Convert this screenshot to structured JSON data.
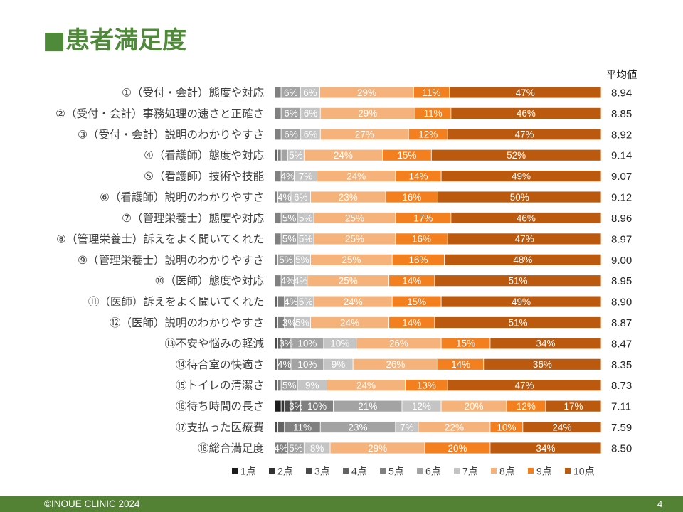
{
  "title": "■患者満足度",
  "theme": {
    "title_green": "#4f8a3b",
    "footer_green": "#548235"
  },
  "chart_data": {
    "type": "bar",
    "horizontal": true,
    "stacked": true,
    "xlim": [
      0,
      100
    ],
    "legend_position": "bottom",
    "average_header": "平均値",
    "series": [
      {
        "name": "1点",
        "color": "#1c1c1c"
      },
      {
        "name": "2点",
        "color": "#333333"
      },
      {
        "name": "3点",
        "color": "#4a4a4a"
      },
      {
        "name": "4点",
        "color": "#636363"
      },
      {
        "name": "5点",
        "color": "#808080"
      },
      {
        "name": "6点",
        "color": "#a3a3a3"
      },
      {
        "name": "7点",
        "color": "#c4c4c4"
      },
      {
        "name": "8点",
        "color": "#f5b37b"
      },
      {
        "name": "9点",
        "color": "#f47f1f"
      },
      {
        "name": "10点",
        "color": "#bb5a0f"
      }
    ],
    "rows": [
      {
        "category": "①（受付・会計）態度や対応",
        "average": "8.94",
        "segments": [
          {
            "series": "5点",
            "pct": 2
          },
          {
            "series": "6点",
            "pct": 6,
            "label": "6%"
          },
          {
            "series": "7点",
            "pct": 6,
            "label": "6%"
          },
          {
            "series": "8点",
            "pct": 29,
            "label": "29%"
          },
          {
            "series": "9点",
            "pct": 11,
            "label": "11%"
          },
          {
            "series": "10点",
            "pct": 47,
            "label": "47%"
          }
        ]
      },
      {
        "category": "②（受付・会計）事務処理の速さと正確さ",
        "average": "8.85",
        "segments": [
          {
            "series": "5点",
            "pct": 2
          },
          {
            "series": "6点",
            "pct": 6,
            "label": "6%"
          },
          {
            "series": "7点",
            "pct": 6,
            "label": "6%"
          },
          {
            "series": "8点",
            "pct": 29,
            "label": "29%"
          },
          {
            "series": "9点",
            "pct": 11,
            "label": "11%"
          },
          {
            "series": "10点",
            "pct": 46,
            "label": "46%"
          }
        ]
      },
      {
        "category": "③（受付・会計）説明のわかりやすさ",
        "average": "8.92",
        "segments": [
          {
            "series": "5点",
            "pct": 2
          },
          {
            "series": "6点",
            "pct": 6,
            "label": "6%"
          },
          {
            "series": "7点",
            "pct": 6,
            "label": "6%"
          },
          {
            "series": "8点",
            "pct": 27,
            "label": "27%"
          },
          {
            "series": "9点",
            "pct": 12,
            "label": "12%"
          },
          {
            "series": "10点",
            "pct": 47,
            "label": "47%"
          }
        ]
      },
      {
        "category": "④（看護師）態度や対応",
        "average": "9.14",
        "segments": [
          {
            "series": "4点",
            "pct": 1
          },
          {
            "series": "5点",
            "pct": 1
          },
          {
            "series": "6点",
            "pct": 2
          },
          {
            "series": "7点",
            "pct": 5,
            "label": "5%"
          },
          {
            "series": "8点",
            "pct": 24,
            "label": "24%"
          },
          {
            "series": "9点",
            "pct": 15,
            "label": "15%"
          },
          {
            "series": "10点",
            "pct": 52,
            "label": "52%"
          }
        ]
      },
      {
        "category": "⑤（看護師）技術や技能",
        "average": "9.07",
        "segments": [
          {
            "series": "5点",
            "pct": 2
          },
          {
            "series": "6点",
            "pct": 4,
            "label": "4%"
          },
          {
            "series": "7点",
            "pct": 7,
            "label": "7%"
          },
          {
            "series": "8点",
            "pct": 24,
            "label": "24%"
          },
          {
            "series": "9点",
            "pct": 14,
            "label": "14%"
          },
          {
            "series": "10点",
            "pct": 49,
            "label": "49%"
          }
        ]
      },
      {
        "category": "⑥（看護師）説明のわかりやすさ",
        "average": "9.12",
        "segments": [
          {
            "series": "5点",
            "pct": 1
          },
          {
            "series": "6点",
            "pct": 4,
            "label": "4%"
          },
          {
            "series": "7点",
            "pct": 6,
            "label": "6%"
          },
          {
            "series": "8点",
            "pct": 23,
            "label": "23%"
          },
          {
            "series": "9点",
            "pct": 16,
            "label": "16%"
          },
          {
            "series": "10点",
            "pct": 50,
            "label": "50%"
          }
        ]
      },
      {
        "category": "⑦（管理栄養士）態度や対応",
        "average": "8.96",
        "segments": [
          {
            "series": "5点",
            "pct": 2
          },
          {
            "series": "6点",
            "pct": 5,
            "label": "5%"
          },
          {
            "series": "7点",
            "pct": 5,
            "label": "5%"
          },
          {
            "series": "8点",
            "pct": 25,
            "label": "25%"
          },
          {
            "series": "9点",
            "pct": 17,
            "label": "17%"
          },
          {
            "series": "10点",
            "pct": 46,
            "label": "46%"
          }
        ]
      },
      {
        "category": "⑧（管理栄養士）訴えをよく聞いてくれた",
        "average": "8.97",
        "segments": [
          {
            "series": "5点",
            "pct": 2
          },
          {
            "series": "6点",
            "pct": 5,
            "label": "5%"
          },
          {
            "series": "7点",
            "pct": 5,
            "label": "5%"
          },
          {
            "series": "8点",
            "pct": 25,
            "label": "25%"
          },
          {
            "series": "9点",
            "pct": 16,
            "label": "16%"
          },
          {
            "series": "10点",
            "pct": 47,
            "label": "47%"
          }
        ]
      },
      {
        "category": "⑨（管理栄養士）説明のわかりやすさ",
        "average": "9.00",
        "segments": [
          {
            "series": "5点",
            "pct": 1
          },
          {
            "series": "6点",
            "pct": 5,
            "label": "5%"
          },
          {
            "series": "7点",
            "pct": 5,
            "label": "5%"
          },
          {
            "series": "8点",
            "pct": 25,
            "label": "25%"
          },
          {
            "series": "9点",
            "pct": 16,
            "label": "16%"
          },
          {
            "series": "10点",
            "pct": 48,
            "label": "48%"
          }
        ]
      },
      {
        "category": "⑩（医師）態度や対応",
        "average": "8.95",
        "segments": [
          {
            "series": "5点",
            "pct": 2
          },
          {
            "series": "6点",
            "pct": 4,
            "label": "4%"
          },
          {
            "series": "7点",
            "pct": 4,
            "label": "4%"
          },
          {
            "series": "8点",
            "pct": 25,
            "label": "25%"
          },
          {
            "series": "9点",
            "pct": 14,
            "label": "14%"
          },
          {
            "series": "10点",
            "pct": 51,
            "label": "51%"
          }
        ]
      },
      {
        "category": "⑪（医師）訴えをよく聞いてくれた",
        "average": "8.90",
        "segments": [
          {
            "series": "4点",
            "pct": 1
          },
          {
            "series": "5点",
            "pct": 2
          },
          {
            "series": "6点",
            "pct": 4,
            "label": "4%"
          },
          {
            "series": "7点",
            "pct": 5,
            "label": "5%"
          },
          {
            "series": "8点",
            "pct": 24,
            "label": "24%"
          },
          {
            "series": "9点",
            "pct": 15,
            "label": "15%"
          },
          {
            "series": "10点",
            "pct": 49,
            "label": "49%"
          }
        ]
      },
      {
        "category": "⑫（医師）説明のわかりやすさ",
        "average": "8.87",
        "segments": [
          {
            "series": "4点",
            "pct": 1
          },
          {
            "series": "5点",
            "pct": 2
          },
          {
            "series": "6点",
            "pct": 3,
            "label": "3%"
          },
          {
            "series": "7点",
            "pct": 5,
            "label": "5%"
          },
          {
            "series": "8点",
            "pct": 24,
            "label": "24%"
          },
          {
            "series": "9点",
            "pct": 14,
            "label": "14%"
          },
          {
            "series": "10点",
            "pct": 51,
            "label": "51%"
          }
        ]
      },
      {
        "category": "⑬不安や悩みの軽減",
        "average": "8.47",
        "segments": [
          {
            "series": "3点",
            "pct": 1
          },
          {
            "series": "4点",
            "pct": 1
          },
          {
            "series": "5点",
            "pct": 3,
            "label": "3%"
          },
          {
            "series": "6点",
            "pct": 10,
            "label": "10%"
          },
          {
            "series": "7点",
            "pct": 10,
            "label": "10%"
          },
          {
            "series": "8点",
            "pct": 26,
            "label": "26%"
          },
          {
            "series": "9点",
            "pct": 15,
            "label": "15%"
          },
          {
            "series": "10点",
            "pct": 34,
            "label": "34%"
          }
        ]
      },
      {
        "category": "⑭待合室の快適さ",
        "average": "8.35",
        "segments": [
          {
            "series": "4点",
            "pct": 1
          },
          {
            "series": "5点",
            "pct": 4,
            "label": "4%"
          },
          {
            "series": "6点",
            "pct": 10,
            "label": "10%"
          },
          {
            "series": "7点",
            "pct": 9,
            "label": "9%"
          },
          {
            "series": "8点",
            "pct": 26,
            "label": "26%"
          },
          {
            "series": "9点",
            "pct": 14,
            "label": "14%"
          },
          {
            "series": "10点",
            "pct": 36,
            "label": "36%"
          }
        ]
      },
      {
        "category": "⑮トイレの清潔さ",
        "average": "8.73",
        "segments": [
          {
            "series": "4点",
            "pct": 1
          },
          {
            "series": "5点",
            "pct": 1
          },
          {
            "series": "6点",
            "pct": 5,
            "label": "5%"
          },
          {
            "series": "7点",
            "pct": 9,
            "label": "9%"
          },
          {
            "series": "8点",
            "pct": 24,
            "label": "24%"
          },
          {
            "series": "9点",
            "pct": 13,
            "label": "13%"
          },
          {
            "series": "10点",
            "pct": 47,
            "label": "47%"
          }
        ]
      },
      {
        "category": "⑯待ち時間の長さ",
        "average": "7.11",
        "segments": [
          {
            "series": "1点",
            "pct": 2
          },
          {
            "series": "2点",
            "pct": 1
          },
          {
            "series": "3点",
            "pct": 2
          },
          {
            "series": "4点",
            "pct": 3,
            "label": "3%"
          },
          {
            "series": "5点",
            "pct": 10,
            "label": "10%"
          },
          {
            "series": "6点",
            "pct": 21,
            "label": "21%"
          },
          {
            "series": "7点",
            "pct": 12,
            "label": "12%"
          },
          {
            "series": "8点",
            "pct": 20,
            "label": "20%"
          },
          {
            "series": "9点",
            "pct": 12,
            "label": "12%"
          },
          {
            "series": "10点",
            "pct": 17,
            "label": "17%"
          }
        ]
      },
      {
        "category": "⑰支払った医療費",
        "average": "7.59",
        "segments": [
          {
            "series": "3点",
            "pct": 1
          },
          {
            "series": "4点",
            "pct": 2
          },
          {
            "series": "5点",
            "pct": 11,
            "label": "11%"
          },
          {
            "series": "6点",
            "pct": 23,
            "label": "23%"
          },
          {
            "series": "7点",
            "pct": 7,
            "label": "7%"
          },
          {
            "series": "8点",
            "pct": 22,
            "label": "22%"
          },
          {
            "series": "9点",
            "pct": 10,
            "label": "10%"
          },
          {
            "series": "10点",
            "pct": 24,
            "label": "24%"
          }
        ]
      },
      {
        "category": "⑱総合満足度",
        "average": "8.50",
        "segments": [
          {
            "series": "5点",
            "pct": 4,
            "label": "4%"
          },
          {
            "series": "6点",
            "pct": 5,
            "label": "5%"
          },
          {
            "series": "7点",
            "pct": 8,
            "label": "8%"
          },
          {
            "series": "8点",
            "pct": 29,
            "label": "29%"
          },
          {
            "series": "9点",
            "pct": 20,
            "label": "20%"
          },
          {
            "series": "10点",
            "pct": 34,
            "label": "34%"
          }
        ]
      }
    ]
  },
  "footer": {
    "copyright": "©INOUE CLINIC 2024",
    "page_number": "4"
  }
}
